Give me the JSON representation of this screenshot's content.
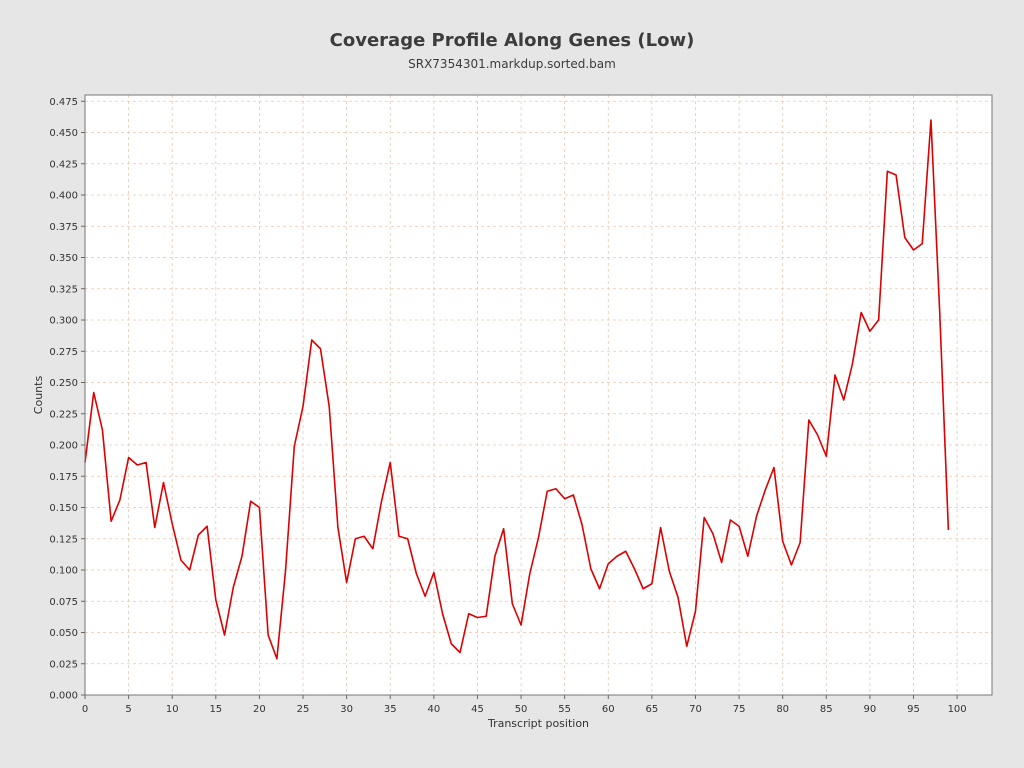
{
  "chart_data": {
    "type": "line",
    "title": "Coverage Profile Along Genes (Low)",
    "subtitle": "SRX7354301.markdup.sorted.bam",
    "xlabel": "Transcript position",
    "ylabel": "Counts",
    "xlim": [
      0,
      104
    ],
    "ylim": [
      0,
      0.48
    ],
    "xticks": [
      0,
      5,
      10,
      15,
      20,
      25,
      30,
      35,
      40,
      45,
      50,
      55,
      60,
      65,
      70,
      75,
      80,
      85,
      90,
      95,
      100
    ],
    "yticks": [
      0.0,
      0.025,
      0.05,
      0.075,
      0.1,
      0.125,
      0.15,
      0.175,
      0.2,
      0.225,
      0.25,
      0.275,
      0.3,
      0.325,
      0.35,
      0.375,
      0.4,
      0.425,
      0.45,
      0.475
    ],
    "ytick_labels": [
      "0.000",
      "0.025",
      "0.050",
      "0.075",
      "0.100",
      "0.125",
      "0.150",
      "0.175",
      "0.200",
      "0.225",
      "0.250",
      "0.275",
      "0.300",
      "0.325",
      "0.350",
      "0.375",
      "0.400",
      "0.425",
      "0.450",
      "0.475"
    ],
    "grid": true,
    "colors": {
      "line": "#dd0000",
      "grid": "#f0c8a8",
      "plot_bg": "#ffffff",
      "frame": "#777777"
    },
    "series": [
      {
        "x": [
          0,
          1,
          2,
          3,
          4,
          5,
          6,
          7,
          8,
          9,
          10,
          11,
          12,
          13,
          14,
          15,
          16,
          17,
          18,
          19,
          20,
          21,
          22,
          23,
          24,
          25,
          26,
          27,
          28,
          29,
          30,
          31,
          32,
          33,
          34,
          35,
          36,
          37,
          38,
          39,
          40,
          41,
          42,
          43,
          44,
          45,
          46,
          47,
          48,
          49,
          50,
          51,
          52,
          53,
          54,
          55,
          56,
          57,
          58,
          59,
          60,
          61,
          62,
          63,
          64,
          65,
          66,
          67,
          68,
          69,
          70,
          71,
          72,
          73,
          74,
          75,
          76,
          77,
          78,
          79,
          80,
          81,
          82,
          83,
          84,
          85,
          86,
          87,
          88,
          89,
          90,
          91,
          92,
          93,
          94,
          95,
          96,
          97,
          98,
          99
        ],
        "values": [
          0.186,
          0.242,
          0.212,
          0.139,
          0.156,
          0.19,
          0.184,
          0.186,
          0.134,
          0.17,
          0.137,
          0.108,
          0.1,
          0.128,
          0.135,
          0.076,
          0.048,
          0.086,
          0.111,
          0.155,
          0.15,
          0.048,
          0.029,
          0.1,
          0.199,
          0.231,
          0.284,
          0.277,
          0.231,
          0.134,
          0.09,
          0.125,
          0.127,
          0.117,
          0.155,
          0.186,
          0.127,
          0.125,
          0.097,
          0.079,
          0.098,
          0.065,
          0.041,
          0.034,
          0.065,
          0.062,
          0.063,
          0.111,
          0.133,
          0.073,
          0.056,
          0.097,
          0.126,
          0.163,
          0.165,
          0.157,
          0.16,
          0.136,
          0.101,
          0.085,
          0.105,
          0.111,
          0.115,
          0.101,
          0.085,
          0.089,
          0.134,
          0.099,
          0.078,
          0.039,
          0.067,
          0.142,
          0.129,
          0.106,
          0.14,
          0.135,
          0.111,
          0.143,
          0.164,
          0.182,
          0.123,
          0.104,
          0.122,
          0.22,
          0.208,
          0.191,
          0.256,
          0.236,
          0.265,
          0.306,
          0.291,
          0.3,
          0.419,
          0.416,
          0.366,
          0.356,
          0.361,
          0.46,
          0.307,
          0.132
        ]
      }
    ]
  }
}
